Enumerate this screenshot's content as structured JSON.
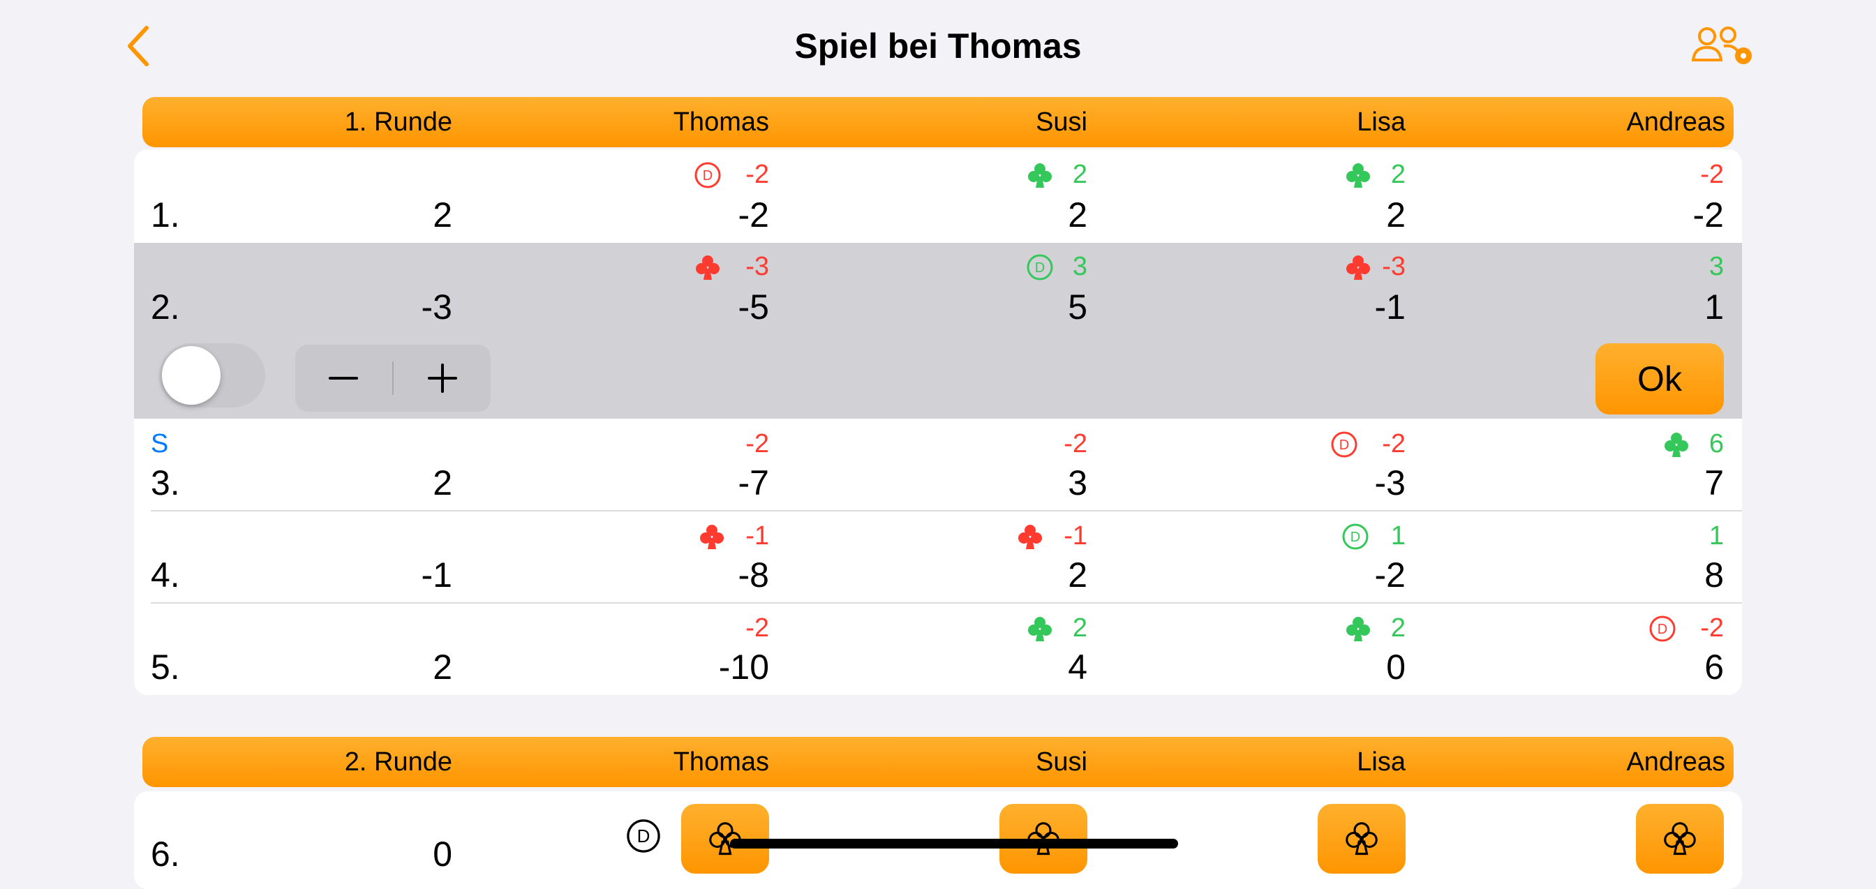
{
  "nav": {
    "title": "Spiel bei Thomas",
    "back_icon": "chevron-left-icon",
    "settings_icon": "people-settings-icon"
  },
  "colors": {
    "accent": "#ff9500",
    "negative": "#ff3b30",
    "positive": "#34c759",
    "selected_row": "#d1d1d6"
  },
  "players": [
    "Thomas",
    "Susi",
    "Lisa",
    "Andreas"
  ],
  "rounds": [
    {
      "label": "1. Runde",
      "games": [
        {
          "num": "1.",
          "value": "2",
          "cells": [
            {
              "delta": "-2",
              "total": "-2",
              "icon": "dealer-icon",
              "color": "red"
            },
            {
              "delta": "2",
              "total": "2",
              "icon": "club-icon",
              "color": "green"
            },
            {
              "delta": "2",
              "total": "2",
              "icon": "club-icon",
              "color": "green"
            },
            {
              "delta": "-2",
              "total": "-2",
              "icon": "",
              "color": "red"
            }
          ]
        },
        {
          "num": "2.",
          "value": "-3",
          "selected": true,
          "cells": [
            {
              "delta": "-3",
              "total": "-5",
              "icon": "club-icon",
              "color": "red"
            },
            {
              "delta": "3",
              "total": "5",
              "icon": "dealer-icon",
              "color": "green"
            },
            {
              "delta": "-3",
              "total": "-1",
              "icon": "club-icon",
              "color": "red"
            },
            {
              "delta": "3",
              "total": "1",
              "icon": "",
              "color": "green"
            }
          ]
        },
        {
          "num": "3.",
          "value": "2",
          "flag": "S",
          "cells": [
            {
              "delta": "-2",
              "total": "-7",
              "icon": "",
              "color": "red"
            },
            {
              "delta": "-2",
              "total": "3",
              "icon": "",
              "color": "red"
            },
            {
              "delta": "-2",
              "total": "-3",
              "icon": "dealer-icon",
              "color": "red"
            },
            {
              "delta": "6",
              "total": "7",
              "icon": "club-icon",
              "color": "green"
            }
          ]
        },
        {
          "num": "4.",
          "value": "-1",
          "cells": [
            {
              "delta": "-1",
              "total": "-8",
              "icon": "club-icon",
              "color": "red"
            },
            {
              "delta": "-1",
              "total": "2",
              "icon": "club-icon",
              "color": "red"
            },
            {
              "delta": "1",
              "total": "-2",
              "icon": "dealer-icon",
              "color": "green"
            },
            {
              "delta": "1",
              "total": "8",
              "icon": "",
              "color": "green"
            }
          ]
        },
        {
          "num": "5.",
          "value": "2",
          "cells": [
            {
              "delta": "-2",
              "total": "-10",
              "icon": "",
              "color": "red"
            },
            {
              "delta": "2",
              "total": "4",
              "icon": "club-icon",
              "color": "green"
            },
            {
              "delta": "2",
              "total": "0",
              "icon": "club-icon",
              "color": "green"
            },
            {
              "delta": "-2",
              "total": "6",
              "icon": "dealer-icon",
              "color": "red"
            }
          ]
        }
      ]
    },
    {
      "label": "2. Runde",
      "games": [
        {
          "num": "6.",
          "value": "0",
          "dealer_icon": "dealer-icon",
          "buttons": [
            "club-icon",
            "club-icon",
            "club-icon",
            "club-icon"
          ]
        }
      ]
    }
  ],
  "controls": {
    "ok_label": "Ok",
    "toggle_on": false,
    "minus_label": "minus-icon",
    "plus_label": "plus-icon"
  }
}
